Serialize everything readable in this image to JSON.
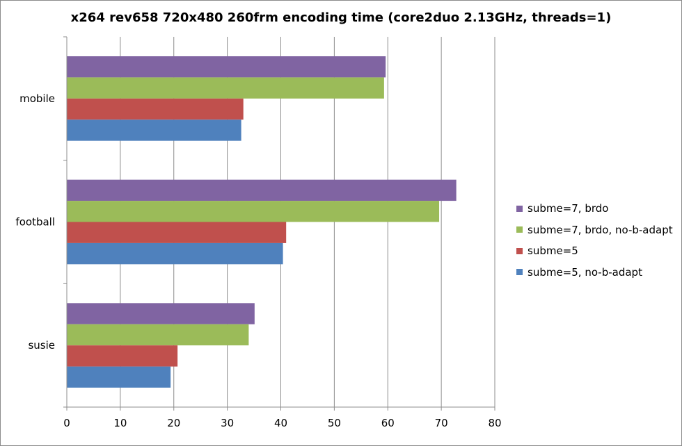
{
  "chart_data": {
    "type": "bar",
    "orientation": "horizontal",
    "title": "x264 rev658 720x480 260frm encoding time (core2duo 2.13GHz, threads=1)",
    "xlabel": "",
    "ylabel": "",
    "categories": [
      "mobile",
      "football",
      "susie"
    ],
    "series": [
      {
        "name": "subme=7, brdo",
        "color": "#8064a2",
        "values": [
          59.6,
          72.8,
          35.1
        ]
      },
      {
        "name": "subme=7, brdo, no-b-adapt",
        "color": "#9bbb59",
        "values": [
          59.3,
          69.6,
          34.0
        ]
      },
      {
        "name": "subme=5",
        "color": "#c0504d",
        "values": [
          33.0,
          41.0,
          20.7
        ]
      },
      {
        "name": "subme=5, no-b-adapt",
        "color": "#4f81bd",
        "values": [
          32.6,
          40.4,
          19.4
        ]
      }
    ],
    "xlim": [
      0,
      80
    ],
    "xticks": [
      0,
      10,
      20,
      30,
      40,
      50,
      60,
      70,
      80
    ],
    "grid": true,
    "legend_position": "right"
  }
}
